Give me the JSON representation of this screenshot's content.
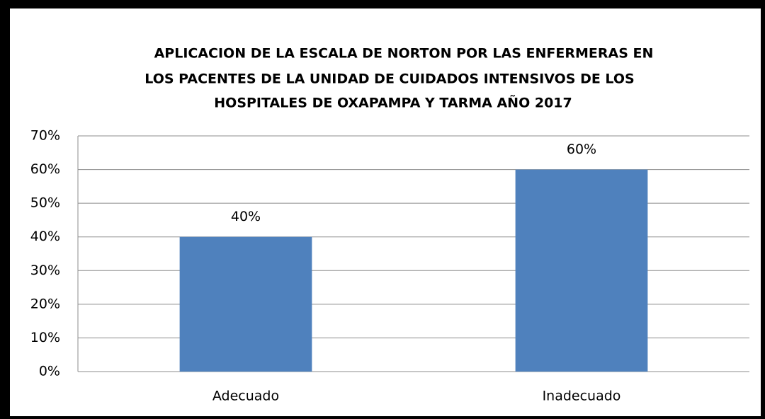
{
  "chart_data": {
    "type": "bar",
    "title": [
      "APLICACION DE LA ESCALA DE NORTON  POR LAS ENFERMERAS  EN",
      "LOS PACENTES   DE LA  UNIDAD  DE CUIDADOS INTENSIVOS DE LOS",
      "HOSPITALES  DE OXAPAMPA Y TARMA AÑO 2017"
    ],
    "categories": [
      "Adecuado",
      "Inadecuado"
    ],
    "values": [
      40,
      60
    ],
    "value_labels": [
      "40%",
      "60%"
    ],
    "color": "#4f81bd",
    "ylim": [
      0,
      70
    ],
    "yticks": [
      {
        "value": 0,
        "label": "0%"
      },
      {
        "value": 10,
        "label": "10%"
      },
      {
        "value": 20,
        "label": "20%"
      },
      {
        "value": 30,
        "label": "30%"
      },
      {
        "value": 40,
        "label": "40%"
      },
      {
        "value": 50,
        "label": "50%"
      },
      {
        "value": 60,
        "label": "60%"
      },
      {
        "value": 70,
        "label": "70%"
      }
    ],
    "grid": true
  }
}
